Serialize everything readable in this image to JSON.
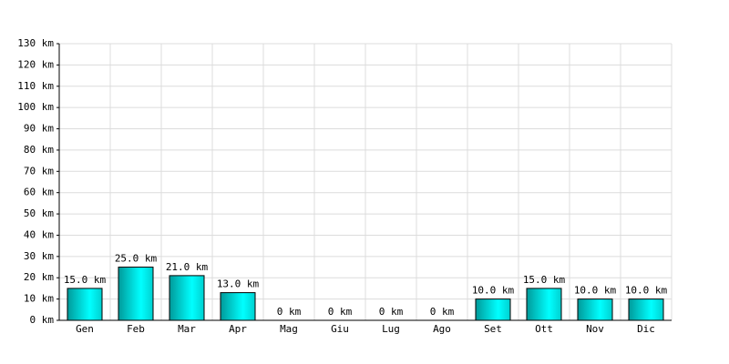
{
  "chart_data": {
    "type": "bar",
    "categories": [
      "Gen",
      "Feb",
      "Mar",
      "Apr",
      "Mag",
      "Giu",
      "Lug",
      "Ago",
      "Set",
      "Ott",
      "Nov",
      "Dic"
    ],
    "values": [
      15,
      25,
      21,
      13,
      0,
      0,
      0,
      0,
      10,
      15,
      10,
      10
    ],
    "value_labels": [
      "15.0 km",
      "25.0 km",
      "21.0 km",
      "13.0 km",
      "0 km",
      "0 km",
      "0 km",
      "0 km",
      "10.0 km",
      "15.0 km",
      "10.0 km",
      "10.0 km"
    ],
    "color": "#00ffff",
    "ylim": [
      0,
      130
    ],
    "yticks": [
      {
        "value": 0,
        "label": "0 km"
      },
      {
        "value": 10,
        "label": "10 km"
      },
      {
        "value": 20,
        "label": "20 km"
      },
      {
        "value": 30,
        "label": "30 km"
      },
      {
        "value": 40,
        "label": "40 km"
      },
      {
        "value": 50,
        "label": "50 km"
      },
      {
        "value": 60,
        "label": "60 km"
      },
      {
        "value": 70,
        "label": "70 km"
      },
      {
        "value": 80,
        "label": "80 km"
      },
      {
        "value": 90,
        "label": "90 km"
      },
      {
        "value": 100,
        "label": "100 km"
      },
      {
        "value": 110,
        "label": "110 km"
      },
      {
        "value": 120,
        "label": "120 km"
      },
      {
        "value": 130,
        "label": "130 km"
      }
    ],
    "grid": true
  }
}
